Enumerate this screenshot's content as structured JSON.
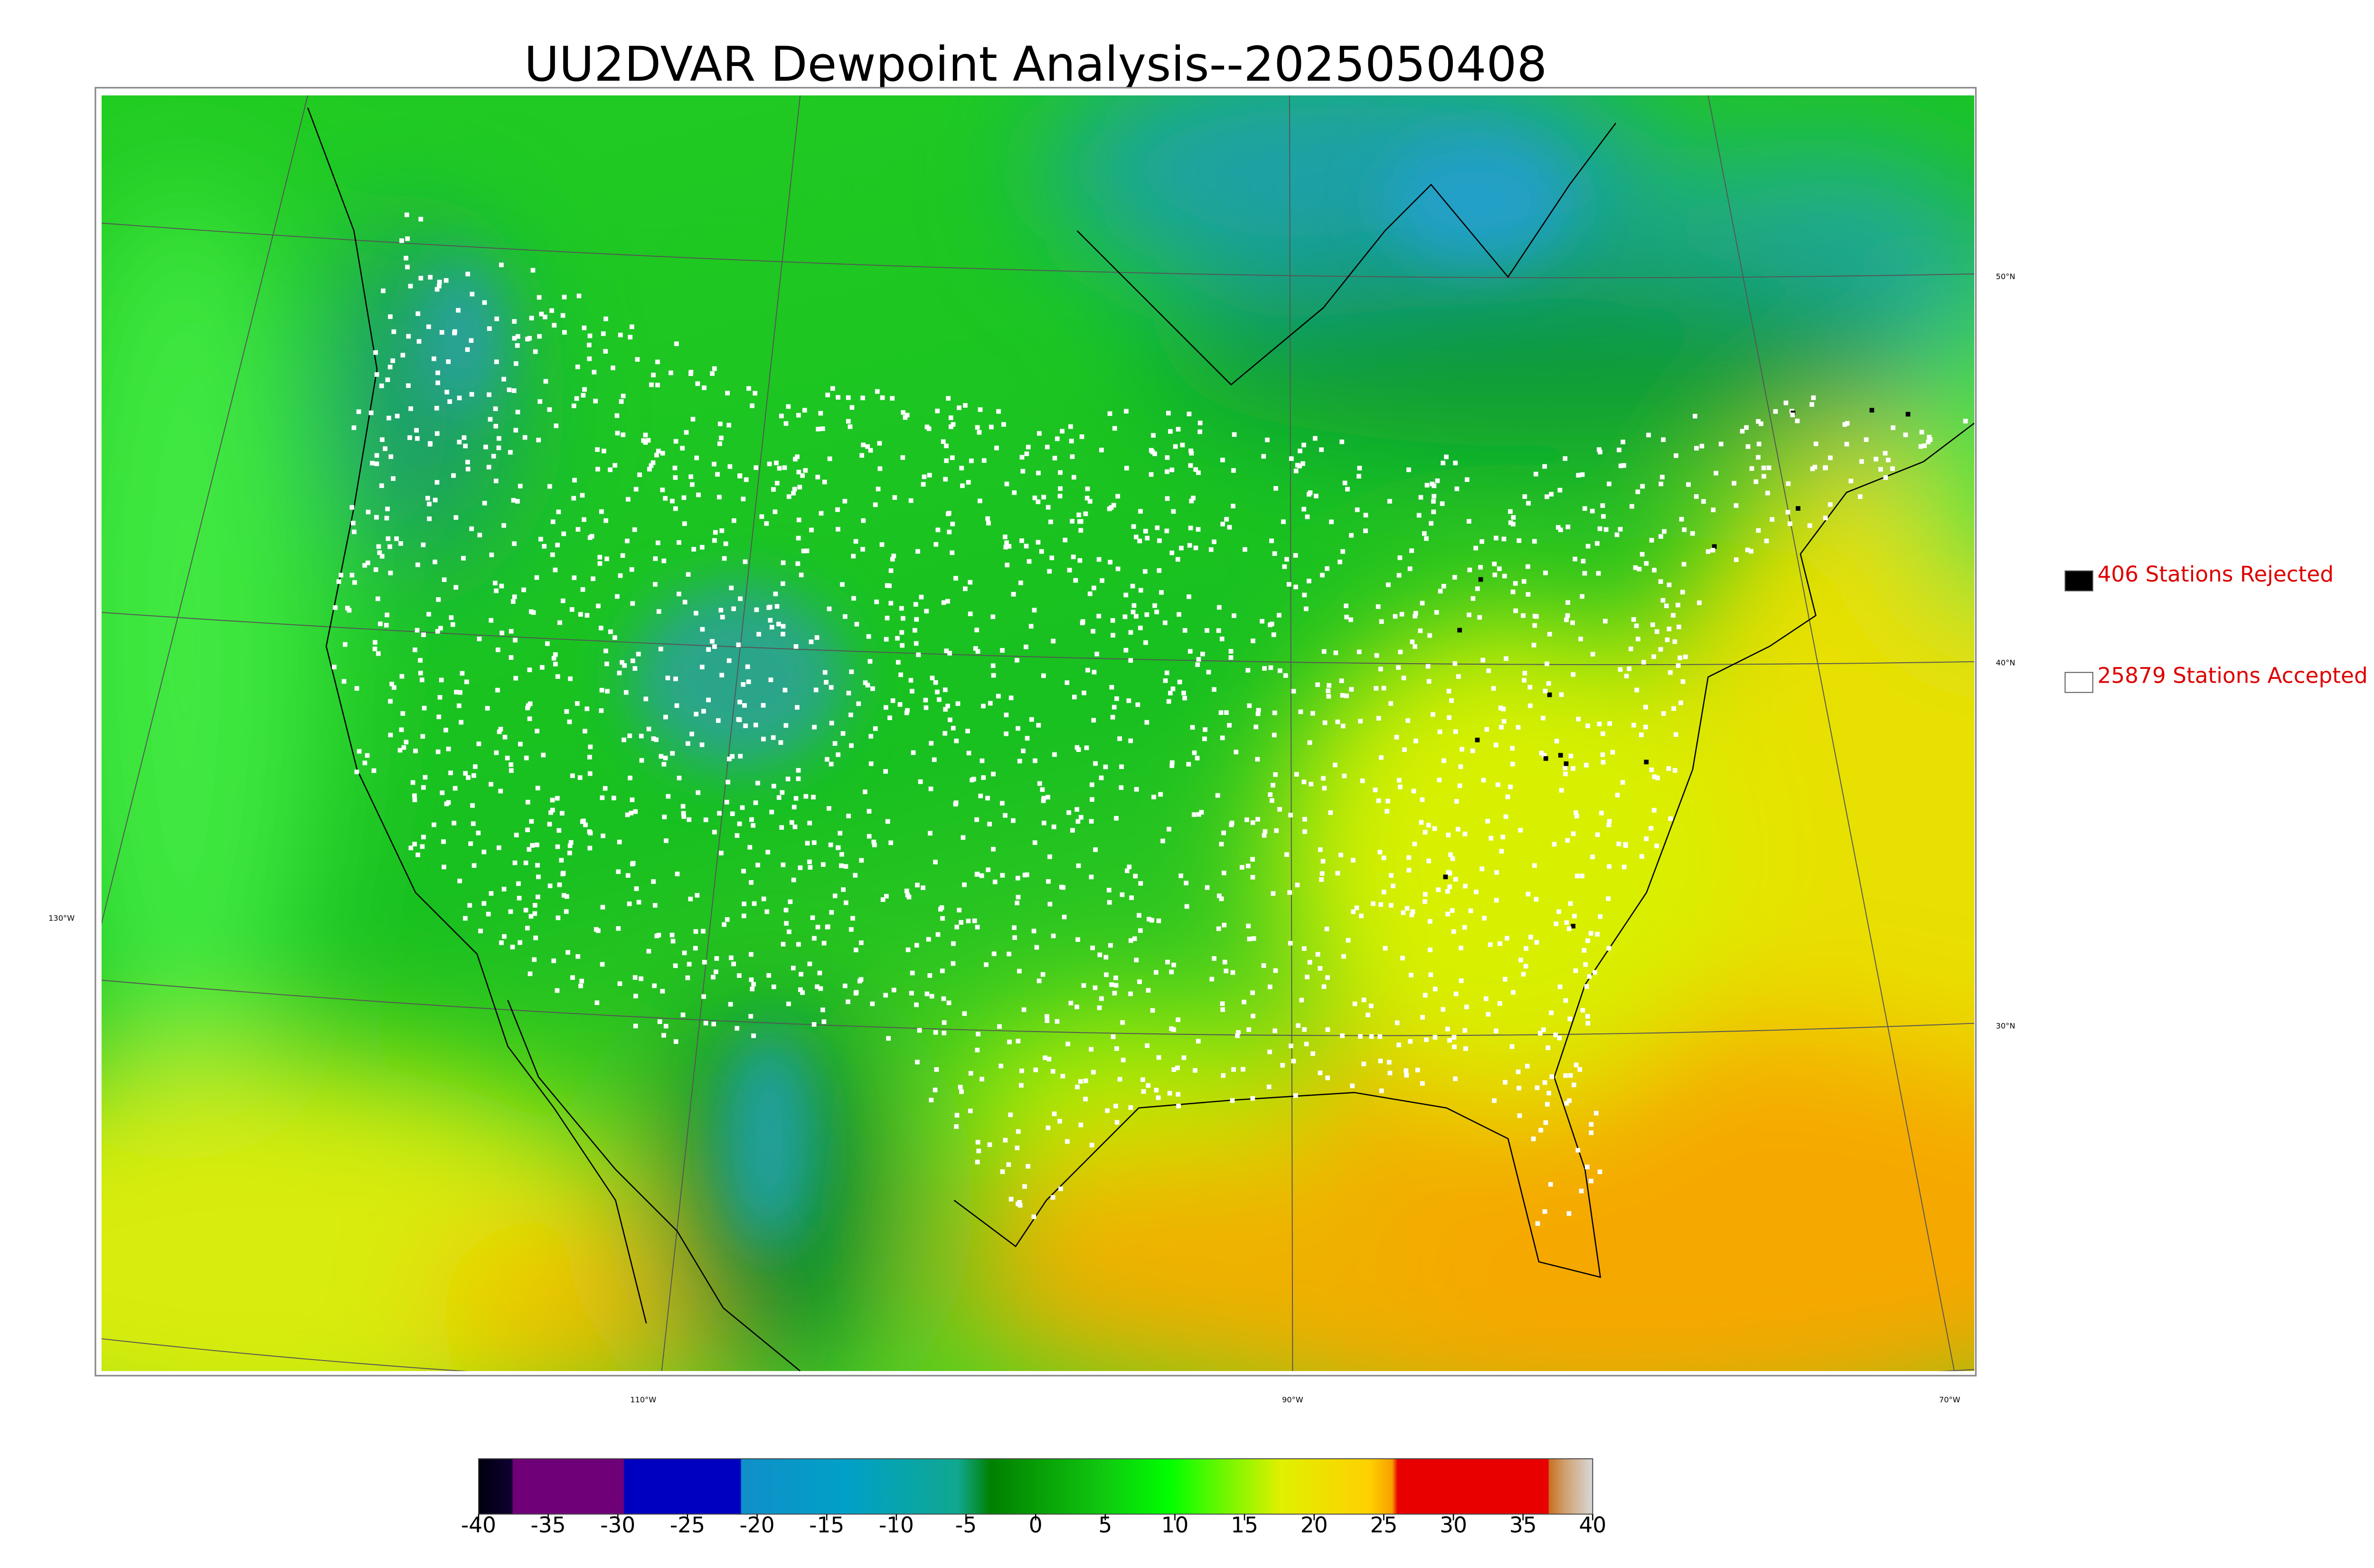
{
  "title": "UU2DVAR Dewpoint Analysis--2025050408",
  "legend": [
    {
      "label": "406 Stations Rejected",
      "color": "#000000"
    },
    {
      "label": "25879 Stations Accepted",
      "color": "#ffffff"
    }
  ],
  "latitude_labels": [
    "50°N",
    "40°N",
    "30°N"
  ],
  "longitude_labels": [
    "130°W",
    "110°W",
    "90°W",
    "70°W"
  ],
  "colorbar": {
    "lim": [
      -40,
      40
    ],
    "ticks": [
      -40,
      -35,
      -30,
      -25,
      -20,
      -15,
      -10,
      -5,
      0,
      5,
      10,
      15,
      20,
      25,
      30,
      35,
      40
    ]
  }
}
